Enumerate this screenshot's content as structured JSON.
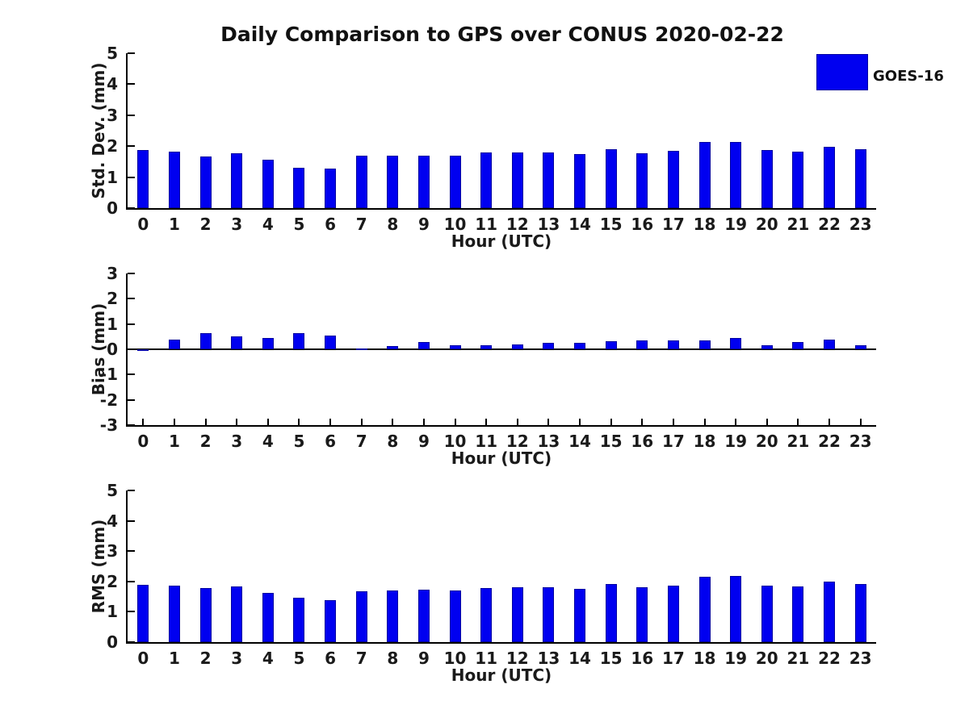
{
  "figure": {
    "title": "Daily Comparison to GPS over CONUS 2020-02-22",
    "legend": {
      "label": "GOES-16",
      "color": "#0000F0"
    }
  },
  "colors": {
    "bar_fill": "#0000F0",
    "bar_edge": "#0000A0",
    "axis": "#000000",
    "text": "#1a1a1a"
  },
  "chart_data": [
    {
      "type": "bar",
      "name": "std-dev-by-hour",
      "series_name": "GOES-16",
      "ylabel": "Std. Dev. (mm)",
      "xlabel": "Hour (UTC)",
      "categories": [
        "0",
        "1",
        "2",
        "3",
        "4",
        "5",
        "6",
        "7",
        "8",
        "9",
        "10",
        "11",
        "12",
        "13",
        "14",
        "15",
        "16",
        "17",
        "18",
        "19",
        "20",
        "21",
        "22",
        "23"
      ],
      "values": [
        1.88,
        1.82,
        1.67,
        1.77,
        1.57,
        1.31,
        1.28,
        1.68,
        1.69,
        1.7,
        1.7,
        1.8,
        1.8,
        1.8,
        1.74,
        1.9,
        1.77,
        1.85,
        2.13,
        2.13,
        1.88,
        1.82,
        1.97,
        1.9
      ],
      "ylim": [
        0,
        5
      ],
      "yticks": [
        0,
        1,
        2,
        3,
        4,
        5
      ],
      "grid": false,
      "legend_position": "upper-right-outside"
    },
    {
      "type": "bar",
      "name": "bias-by-hour",
      "series_name": "GOES-16",
      "ylabel": "Bias (mm)",
      "xlabel": "Hour (UTC)",
      "categories": [
        "0",
        "1",
        "2",
        "3",
        "4",
        "5",
        "6",
        "7",
        "8",
        "9",
        "10",
        "11",
        "12",
        "13",
        "14",
        "15",
        "16",
        "17",
        "18",
        "19",
        "20",
        "21",
        "22",
        "23"
      ],
      "values": [
        -0.03,
        0.38,
        0.63,
        0.52,
        0.44,
        0.63,
        0.55,
        0.03,
        0.13,
        0.3,
        0.17,
        0.17,
        0.18,
        0.27,
        0.25,
        0.31,
        0.35,
        0.34,
        0.34,
        0.45,
        0.15,
        0.3,
        0.37,
        0.15
      ],
      "ylim": [
        -3,
        3
      ],
      "yticks": [
        -3,
        -2,
        -1,
        0,
        1,
        2,
        3
      ],
      "grid": false
    },
    {
      "type": "bar",
      "name": "rms-by-hour",
      "series_name": "GOES-16",
      "ylabel": "RMS (mm)",
      "xlabel": "Hour (UTC)",
      "categories": [
        "0",
        "1",
        "2",
        "3",
        "4",
        "5",
        "6",
        "7",
        "8",
        "9",
        "10",
        "11",
        "12",
        "13",
        "14",
        "15",
        "16",
        "17",
        "18",
        "19",
        "20",
        "21",
        "22",
        "23"
      ],
      "values": [
        1.89,
        1.86,
        1.78,
        1.83,
        1.62,
        1.45,
        1.38,
        1.68,
        1.7,
        1.72,
        1.71,
        1.79,
        1.81,
        1.81,
        1.75,
        1.91,
        1.8,
        1.86,
        2.15,
        2.17,
        1.86,
        1.83,
        1.99,
        1.91
      ],
      "ylim": [
        0,
        5
      ],
      "yticks": [
        0,
        1,
        2,
        3,
        4,
        5
      ],
      "grid": false
    }
  ]
}
